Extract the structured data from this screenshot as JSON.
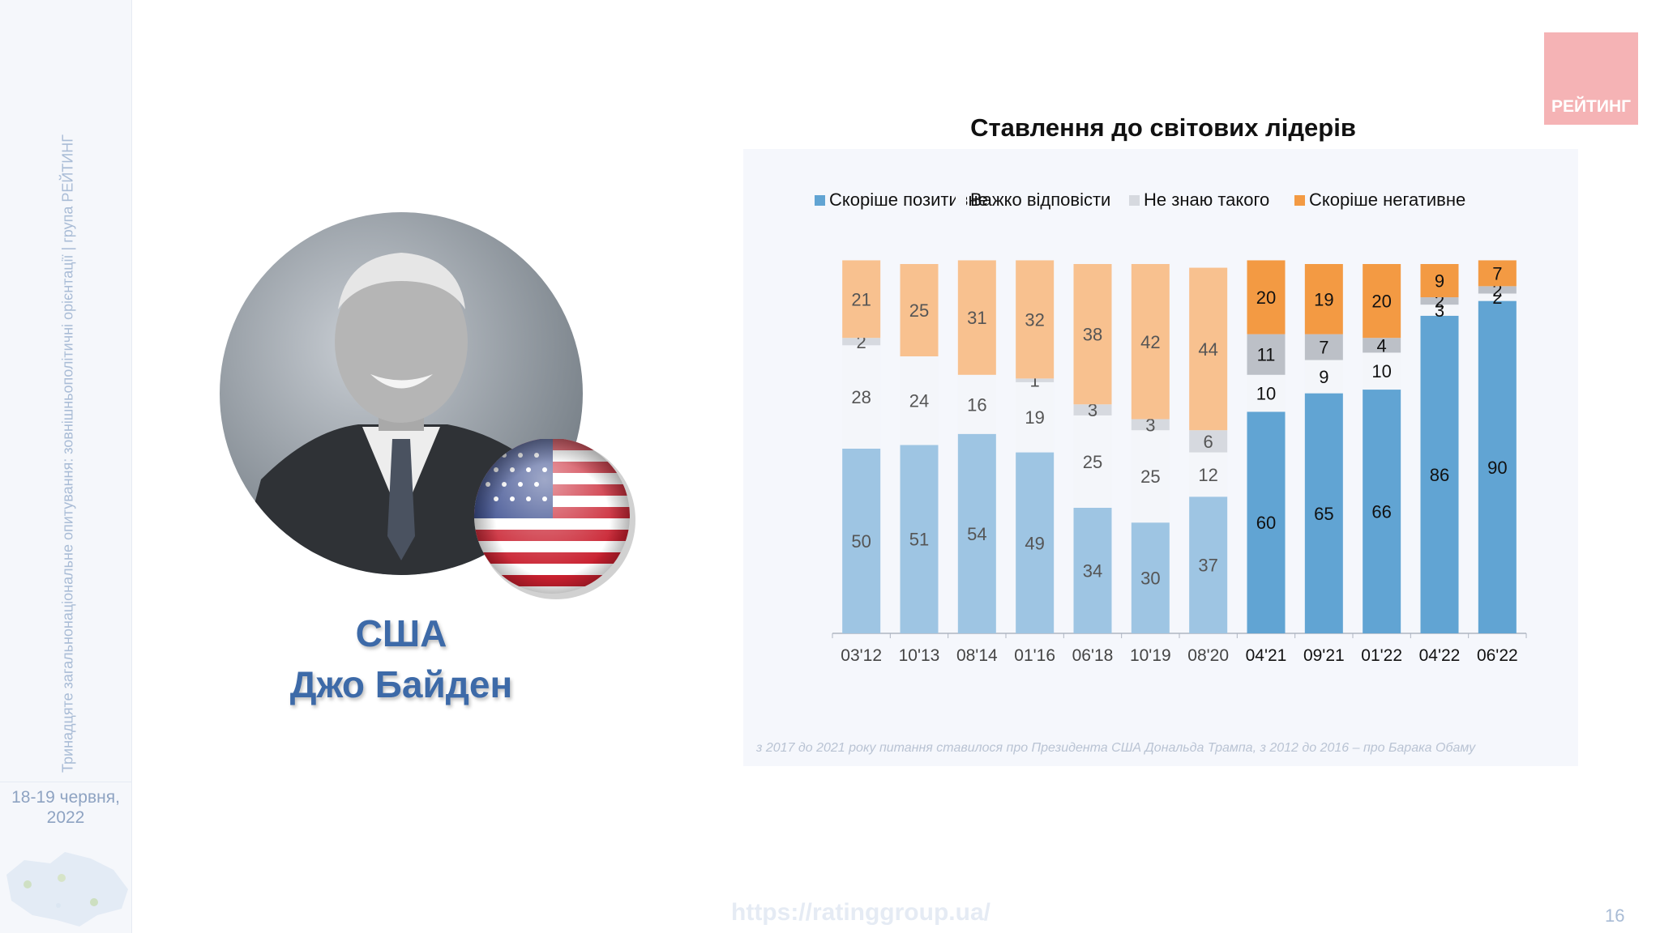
{
  "sidebar": {
    "vertical_text": "Тринадцяте загальнонаціональне опитування: зовнішньополітичні орієнтації | група РЕЙТИНГ",
    "date_line1": "18-19 червня,",
    "date_line2": "2022"
  },
  "logo": {
    "text": "РЕЙТИНГ"
  },
  "left": {
    "country": "США",
    "leader": "Джо Байден"
  },
  "footer": {
    "url": "https://ratinggroup.ua/",
    "page": "16"
  },
  "footnote": "з 2017 до 2021 року питання ставилося про Президента США Дональда Трампа, з 2012 до 2016 – про Барака Обаму",
  "colors": {
    "pos_light": "#9ec5e3",
    "pos_dark": "#61a4d3",
    "dont_know": "#f4f6fa",
    "unknown_light": "#d6d9df",
    "unknown_dark": "#bcc0c7",
    "neg_light": "#f8c18f",
    "neg_dark": "#f39a43"
  },
  "chart_data": {
    "type": "bar",
    "stacked": true,
    "title": "Ставлення до світових лідерів",
    "legend_position": "top",
    "categories": [
      "03'12",
      "10'13",
      "08'14",
      "01'16",
      "06'18",
      "10'19",
      "08'20",
      "04'21",
      "09'21",
      "01'22",
      "04'22",
      "06'22"
    ],
    "highlighted_from_index": 7,
    "series": [
      {
        "name": "Скоріше позитивне",
        "values": [
          50,
          51,
          54,
          49,
          34,
          30,
          37,
          60,
          65,
          66,
          86,
          90
        ]
      },
      {
        "name": "Важко відповісти",
        "values": [
          28,
          24,
          16,
          19,
          25,
          25,
          12,
          10,
          9,
          10,
          3,
          2
        ]
      },
      {
        "name": "Не знаю такого",
        "values": [
          2,
          0,
          0,
          1,
          3,
          3,
          6,
          11,
          7,
          4,
          2,
          2
        ]
      },
      {
        "name": "Скоріше негативне",
        "values": [
          21,
          25,
          31,
          32,
          38,
          42,
          44,
          20,
          19,
          20,
          9,
          7
        ]
      }
    ],
    "ylim": [
      0,
      101
    ]
  }
}
